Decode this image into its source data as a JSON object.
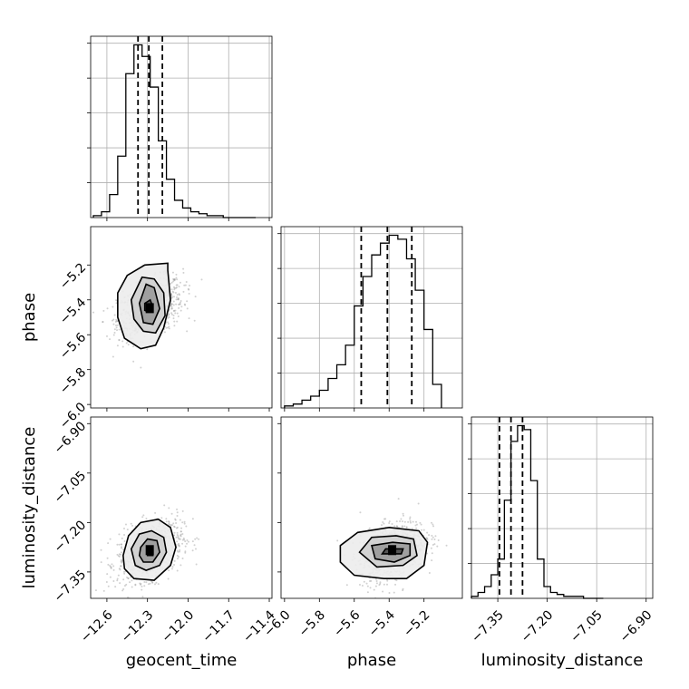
{
  "chart_data": {
    "type": "corner",
    "parameters": [
      "geocent_time",
      "phase",
      "luminosity_distance"
    ],
    "axes": {
      "geocent_time": {
        "range": [
          -12.72,
          -11.38
        ],
        "ticks": [
          -12.6,
          -12.3,
          -12.0,
          -11.7,
          -11.4
        ],
        "tick_labels": [
          "−12.6",
          "−12.3",
          "−12.0",
          "−11.7",
          "−11.4"
        ]
      },
      "phase": {
        "range": [
          -6.02,
          -4.98
        ],
        "ticks": [
          -6.0,
          -5.8,
          -5.6,
          -5.4,
          -5.2
        ],
        "tick_labels": [
          "−6.0",
          "−5.8",
          "−5.6",
          "−5.4",
          "−5.2"
        ]
      },
      "luminosity_distance": {
        "range": [
          -7.43,
          -6.88
        ],
        "ticks": [
          -7.35,
          -7.2,
          -7.05,
          -6.9
        ],
        "tick_labels": [
          "−7.35",
          "−7.20",
          "−7.05",
          "−6.90"
        ]
      }
    },
    "histograms": {
      "geocent_time": {
        "bin_edges": [
          -12.7,
          -12.64,
          -12.58,
          -12.52,
          -12.46,
          -12.4,
          -12.34,
          -12.28,
          -12.22,
          -12.16,
          -12.1,
          -12.04,
          -11.98,
          -11.92,
          -11.86,
          -11.8,
          -11.74,
          -11.68,
          -11.62,
          -11.56,
          -11.5
        ],
        "counts": [
          1,
          3,
          12,
          32,
          75,
          90,
          84,
          68,
          40,
          20,
          9,
          5,
          3,
          2,
          1,
          1,
          0,
          0,
          0,
          0
        ],
        "quantiles": [
          -12.37,
          -12.29,
          -12.19
        ]
      },
      "phase": {
        "bin_edges": [
          -6.0,
          -5.95,
          -5.9,
          -5.85,
          -5.8,
          -5.75,
          -5.7,
          -5.65,
          -5.6,
          -5.55,
          -5.5,
          -5.45,
          -5.4,
          -5.35,
          -5.3,
          -5.25,
          -5.2,
          -5.15,
          -5.1
        ],
        "counts": [
          1,
          2,
          4,
          6,
          9,
          15,
          22,
          32,
          52,
          67,
          78,
          84,
          88,
          86,
          76,
          60,
          40,
          12
        ],
        "quantiles": [
          -5.56,
          -5.41,
          -5.27
        ]
      },
      "luminosity_distance": {
        "bin_edges": [
          -7.43,
          -7.41,
          -7.39,
          -7.37,
          -7.35,
          -7.33,
          -7.31,
          -7.29,
          -7.27,
          -7.25,
          -7.23,
          -7.21,
          -7.19,
          -7.17,
          -7.15,
          -7.13,
          -7.11,
          -7.09,
          -7.07,
          -7.05,
          -7.03
        ],
        "counts": [
          1,
          3,
          6,
          12,
          20,
          50,
          80,
          88,
          86,
          60,
          20,
          6,
          3,
          2,
          1,
          1,
          1,
          0,
          0,
          0
        ],
        "quantiles": [
          -7.345,
          -7.31,
          -7.275
        ]
      }
    },
    "correlations": [
      {
        "x": "geocent_time",
        "y": "phase",
        "center": [
          -12.28,
          -5.45
        ],
        "contours": [
          [
            [
              -12.32,
              -5.42
            ],
            [
              -12.28,
              -5.4
            ],
            [
              -12.26,
              -5.44
            ],
            [
              -12.29,
              -5.47
            ],
            [
              -12.32,
              -5.46
            ]
          ],
          [
            [
              -12.36,
              -5.42
            ],
            [
              -12.31,
              -5.31
            ],
            [
              -12.25,
              -5.33
            ],
            [
              -12.21,
              -5.45
            ],
            [
              -12.26,
              -5.54
            ],
            [
              -12.33,
              -5.53
            ]
          ],
          [
            [
              -12.42,
              -5.4
            ],
            [
              -12.34,
              -5.27
            ],
            [
              -12.25,
              -5.28
            ],
            [
              -12.18,
              -5.36
            ],
            [
              -12.17,
              -5.49
            ],
            [
              -12.24,
              -5.59
            ],
            [
              -12.33,
              -5.58
            ],
            [
              -12.4,
              -5.51
            ]
          ],
          [
            [
              -12.52,
              -5.36
            ],
            [
              -12.45,
              -5.26
            ],
            [
              -12.32,
              -5.2
            ],
            [
              -12.15,
              -5.19
            ],
            [
              -12.15,
              -5.23
            ],
            [
              -12.13,
              -5.4
            ],
            [
              -12.18,
              -5.56
            ],
            [
              -12.24,
              -5.66
            ],
            [
              -12.35,
              -5.68
            ],
            [
              -12.47,
              -5.62
            ],
            [
              -12.52,
              -5.5
            ]
          ]
        ]
      },
      {
        "x": "geocent_time",
        "y": "luminosity_distance",
        "center": [
          -12.28,
          -7.285
        ],
        "contours": [
          [
            [
              -12.3,
              -7.275
            ],
            [
              -12.26,
              -7.275
            ],
            [
              -12.26,
              -7.3
            ],
            [
              -12.3,
              -7.3
            ]
          ],
          [
            [
              -12.35,
              -7.275
            ],
            [
              -12.3,
              -7.25
            ],
            [
              -12.23,
              -7.255
            ],
            [
              -12.21,
              -7.29
            ],
            [
              -12.26,
              -7.32
            ],
            [
              -12.33,
              -7.32
            ],
            [
              -12.36,
              -7.3
            ]
          ],
          [
            [
              -12.42,
              -7.28
            ],
            [
              -12.36,
              -7.235
            ],
            [
              -12.27,
              -7.225
            ],
            [
              -12.18,
              -7.245
            ],
            [
              -12.16,
              -7.29
            ],
            [
              -12.21,
              -7.33
            ],
            [
              -12.31,
              -7.345
            ],
            [
              -12.39,
              -7.33
            ]
          ],
          [
            [
              -12.48,
              -7.3
            ],
            [
              -12.44,
              -7.24
            ],
            [
              -12.35,
              -7.2
            ],
            [
              -12.22,
              -7.19
            ],
            [
              -12.13,
              -7.215
            ],
            [
              -12.09,
              -7.275
            ],
            [
              -12.13,
              -7.33
            ],
            [
              -12.25,
              -7.375
            ],
            [
              -12.4,
              -7.37
            ],
            [
              -12.47,
              -7.34
            ]
          ]
        ]
      },
      {
        "x": "phase",
        "y": "luminosity_distance",
        "center": [
          -5.38,
          -7.285
        ],
        "contours": [
          [
            [
              -5.42,
              -7.28
            ],
            [
              -5.32,
              -7.28
            ],
            [
              -5.33,
              -7.295
            ],
            [
              -5.44,
              -7.295
            ]
          ],
          [
            [
              -5.5,
              -7.27
            ],
            [
              -5.38,
              -7.26
            ],
            [
              -5.28,
              -7.265
            ],
            [
              -5.28,
              -7.3
            ],
            [
              -5.37,
              -7.32
            ],
            [
              -5.48,
              -7.31
            ]
          ],
          [
            [
              -5.57,
              -7.29
            ],
            [
              -5.5,
              -7.245
            ],
            [
              -5.36,
              -7.24
            ],
            [
              -5.26,
              -7.25
            ],
            [
              -5.24,
              -7.3
            ],
            [
              -5.32,
              -7.33
            ],
            [
              -5.47,
              -7.335
            ]
          ],
          [
            [
              -5.68,
              -7.27
            ],
            [
              -5.58,
              -7.23
            ],
            [
              -5.4,
              -7.215
            ],
            [
              -5.23,
              -7.225
            ],
            [
              -5.18,
              -7.26
            ],
            [
              -5.2,
              -7.33
            ],
            [
              -5.3,
              -7.37
            ],
            [
              -5.43,
              -7.37
            ],
            [
              -5.6,
              -7.36
            ],
            [
              -5.68,
              -7.32
            ]
          ]
        ]
      }
    ]
  }
}
